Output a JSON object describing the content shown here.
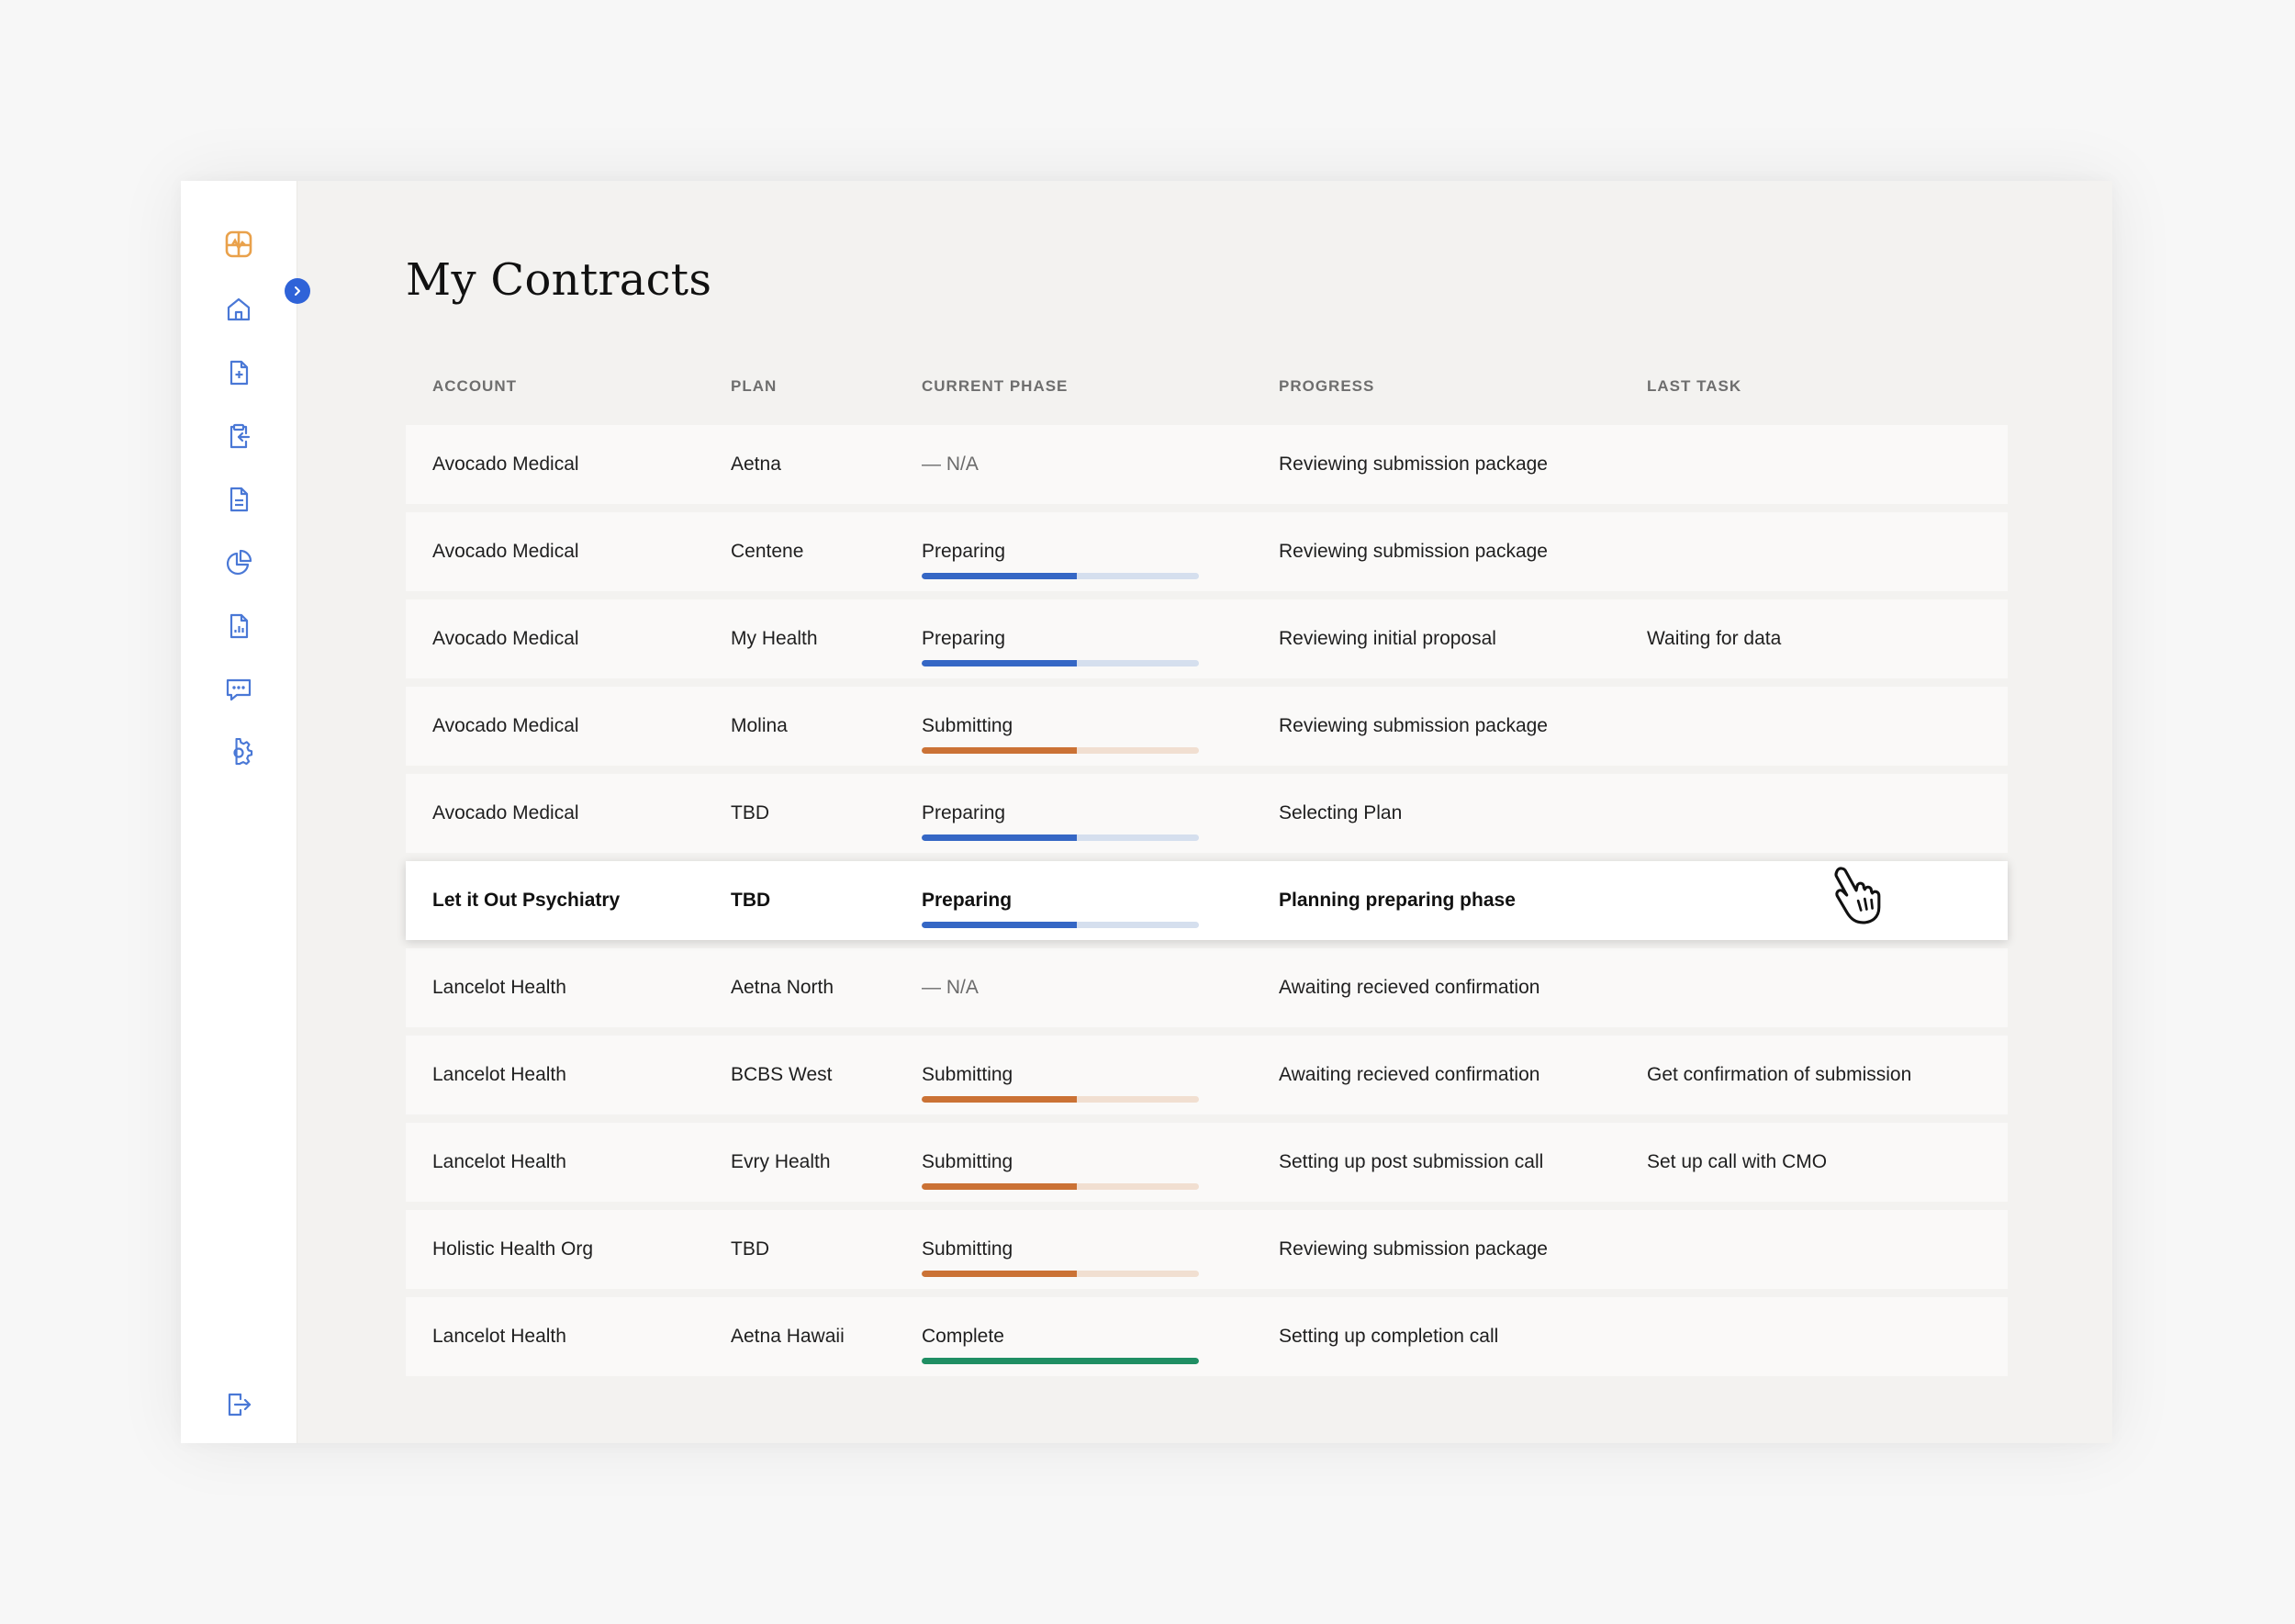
{
  "page": {
    "title": "My Contracts"
  },
  "sidebar": {
    "icons": [
      {
        "name": "logo-icon"
      },
      {
        "name": "home-icon"
      },
      {
        "name": "new-document-icon"
      },
      {
        "name": "clipboard-import-icon"
      },
      {
        "name": "document-icon"
      },
      {
        "name": "pie-chart-icon"
      },
      {
        "name": "report-icon"
      },
      {
        "name": "chat-icon"
      },
      {
        "name": "settings-icon"
      },
      {
        "name": "logout-icon"
      }
    ],
    "accent": "#e9a14b",
    "icon_color": "#4a78d6"
  },
  "table": {
    "headers": {
      "account": "ACCOUNT",
      "plan": "PLAN",
      "phase": "CURRENT PHASE",
      "progress": "PROGRESS",
      "last": "LAST TASK"
    },
    "rows": [
      {
        "account": "Avocado Medical",
        "plan": "Aetna",
        "phase": "— N/A",
        "bar": "none",
        "bar_fill": 0,
        "progress": "Reviewing submission package",
        "last": ""
      },
      {
        "account": "Avocado Medical",
        "plan": "Centene",
        "phase": "Preparing",
        "bar": "blue",
        "bar_fill": 0.56,
        "progress": "Reviewing submission package",
        "last": ""
      },
      {
        "account": "Avocado Medical",
        "plan": "My Health",
        "phase": "Preparing",
        "bar": "blue",
        "bar_fill": 0.56,
        "progress": "Reviewing initial proposal",
        "last": "Waiting for data"
      },
      {
        "account": "Avocado Medical",
        "plan": "Molina",
        "phase": "Submitting",
        "bar": "orange",
        "bar_fill": 0.56,
        "progress": "Reviewing submission package",
        "last": ""
      },
      {
        "account": "Avocado Medical",
        "plan": "TBD",
        "phase": "Preparing",
        "bar": "blue",
        "bar_fill": 0.56,
        "progress": "Selecting Plan",
        "last": ""
      },
      {
        "account": "Let it Out Psychiatry",
        "plan": "TBD",
        "phase": "Preparing",
        "bar": "blue",
        "bar_fill": 0.56,
        "progress": "Planning preparing phase",
        "last": "",
        "highlight": true
      },
      {
        "account": "Lancelot Health",
        "plan": "Aetna North",
        "phase": "— N/A",
        "bar": "none",
        "bar_fill": 0,
        "progress": "Awaiting recieved confirmation",
        "last": ""
      },
      {
        "account": "Lancelot Health",
        "plan": "BCBS West",
        "phase": "Submitting",
        "bar": "orange",
        "bar_fill": 0.56,
        "progress": "Awaiting recieved confirmation",
        "last": "Get confirmation of submission"
      },
      {
        "account": "Lancelot Health",
        "plan": "Evry Health",
        "phase": "Submitting",
        "bar": "orange",
        "bar_fill": 0.56,
        "progress": "Setting up post submission call",
        "last": "Set up call with CMO"
      },
      {
        "account": "Holistic Health Org",
        "plan": "TBD",
        "phase": "Submitting",
        "bar": "orange",
        "bar_fill": 0.56,
        "progress": "Reviewing submission package",
        "last": ""
      },
      {
        "account": "Lancelot Health",
        "plan": "Aetna Hawaii",
        "phase": "Complete",
        "bar": "green",
        "bar_fill": 1,
        "progress": "Setting up completion call",
        "last": ""
      }
    ]
  }
}
